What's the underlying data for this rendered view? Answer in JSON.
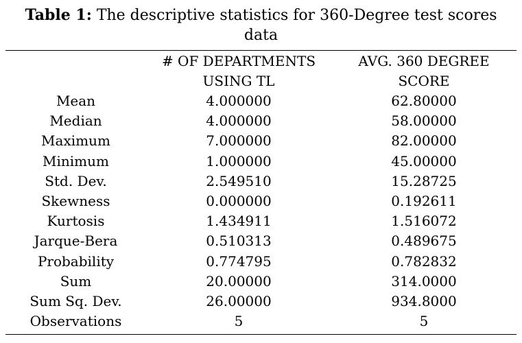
{
  "caption": {
    "label": "Table 1:",
    "text": "The descriptive statistics for 360-Degree test scores data"
  },
  "table": {
    "headers": [
      [
        "",
        ""
      ],
      [
        "# OF DEPARTMENTS",
        "USING TL"
      ],
      [
        "AVG. 360 DEGREE",
        "SCORE"
      ]
    ],
    "rows": [
      [
        "Mean",
        "4.000000",
        "62.80000"
      ],
      [
        "Median",
        "4.000000",
        "58.00000"
      ],
      [
        "Maximum",
        "7.000000",
        "82.00000"
      ],
      [
        "Minimum",
        "1.000000",
        "45.00000"
      ],
      [
        "Std. Dev.",
        "2.549510",
        "15.28725"
      ],
      [
        "Skewness",
        "0.000000",
        "0.192611"
      ],
      [
        "Kurtosis",
        "1.434911",
        "1.516072"
      ],
      [
        "Jarque-Bera",
        "0.510313",
        "0.489675"
      ],
      [
        "Probability",
        "0.774795",
        "0.782832"
      ],
      [
        "Sum",
        "20.00000",
        "314.0000"
      ],
      [
        "Sum Sq. Dev.",
        "26.00000",
        "934.8000"
      ],
      [
        "Observations",
        "5",
        "5"
      ]
    ]
  }
}
